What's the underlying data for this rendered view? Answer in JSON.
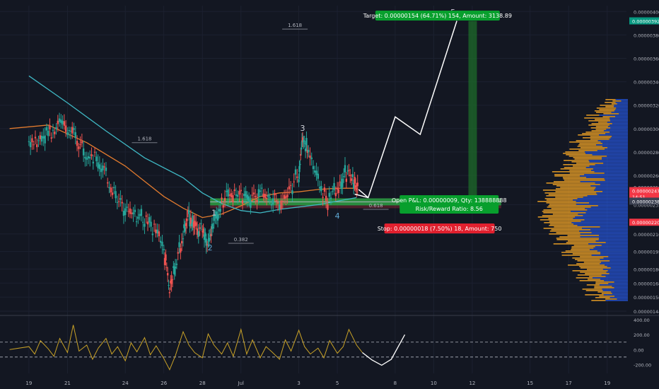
{
  "chart_data": {
    "type": "line",
    "price_axis": {
      "ticks": [
        "0.00000400",
        "0.00000380",
        "0.00000360",
        "0.00000340",
        "0.00000320",
        "0.00000300",
        "0.00000280",
        "0.00000260",
        "0.00000250",
        "0.00000235",
        "0.00000210",
        "0.00000195",
        "0.00000180",
        "0.00000168",
        "0.00000156",
        "0.00000144"
      ],
      "tick_values": [
        400,
        380,
        360,
        340,
        320,
        300,
        280,
        260,
        250,
        235,
        210,
        195,
        180,
        168,
        156,
        144
      ],
      "ylim": [
        144,
        405
      ],
      "scale_note": "x 1e-8"
    },
    "price_badges": [
      {
        "label": "0.00000392",
        "value": 392,
        "color": "#089981"
      },
      {
        "label": "0.00000247",
        "value": 247,
        "color": "#f23645"
      },
      {
        "label": "14:51",
        "value": 242,
        "color": "#f23645"
      },
      {
        "label": "0.00000238",
        "value": 238,
        "color": "#3c4152"
      },
      {
        "label": "0.00000220",
        "value": 220,
        "color": "#f23645"
      }
    ],
    "time_axis": {
      "labels": [
        "19",
        "21",
        "24",
        "26",
        "28",
        "Jul",
        "3",
        "5",
        "8",
        "10",
        "12",
        "15",
        "17",
        "19"
      ],
      "positions": [
        0,
        2,
        5,
        7,
        9,
        11,
        14,
        16,
        19,
        21,
        23,
        26,
        28,
        30
      ],
      "xlim": [
        -1.5,
        31
      ]
    },
    "price_series": [
      [
        0,
        288
      ],
      [
        0.5,
        292
      ],
      [
        1,
        296
      ],
      [
        1.5,
        306
      ],
      [
        2,
        300
      ],
      [
        2.5,
        290
      ],
      [
        3,
        282
      ],
      [
        3.5,
        272
      ],
      [
        4,
        262
      ],
      [
        4.5,
        242
      ],
      [
        5,
        232
      ],
      [
        5.5,
        228
      ],
      [
        6,
        222
      ],
      [
        6.5,
        214
      ],
      [
        7,
        198
      ],
      [
        7.3,
        162
      ],
      [
        7.6,
        185
      ],
      [
        8,
        210
      ],
      [
        8.3,
        226
      ],
      [
        8.6,
        218
      ],
      [
        9,
        212
      ],
      [
        9.3,
        205
      ],
      [
        9.6,
        220
      ],
      [
        10,
        238
      ],
      [
        10.5,
        245
      ],
      [
        11,
        242
      ],
      [
        11.5,
        238
      ],
      [
        12,
        248
      ],
      [
        12.5,
        242
      ],
      [
        13,
        236
      ],
      [
        13.5,
        248
      ],
      [
        14,
        262
      ],
      [
        14.2,
        292
      ],
      [
        14.5,
        282
      ],
      [
        15,
        255
      ],
      [
        15.5,
        238
      ],
      [
        16,
        250
      ],
      [
        16.4,
        262
      ],
      [
        16.8,
        256
      ],
      [
        17.1,
        248
      ]
    ],
    "series": [
      {
        "name": "",
        "color": "#e07a2e",
        "values": [
          [
            -1,
            300
          ],
          [
            1,
            303
          ],
          [
            3,
            288
          ],
          [
            5,
            268
          ],
          [
            7,
            242
          ],
          [
            8,
            232
          ],
          [
            9,
            224
          ],
          [
            10,
            227
          ],
          [
            11,
            234
          ],
          [
            12,
            242
          ],
          [
            13,
            245
          ],
          [
            14,
            246
          ],
          [
            15,
            248
          ],
          [
            16,
            249
          ],
          [
            17,
            249
          ]
        ]
      },
      {
        "name": "",
        "color": "#3fb8c4",
        "values": [
          [
            0,
            345
          ],
          [
            2,
            322
          ],
          [
            4,
            298
          ],
          [
            6,
            275
          ],
          [
            8,
            258
          ],
          [
            9,
            245
          ],
          [
            10,
            236
          ],
          [
            11,
            230
          ],
          [
            12,
            228
          ],
          [
            13,
            231
          ],
          [
            14,
            233
          ],
          [
            15,
            235
          ],
          [
            16,
            238
          ],
          [
            17,
            241
          ]
        ]
      }
    ],
    "projection": [
      [
        17.1,
        248
      ],
      [
        17.6,
        241
      ],
      [
        19,
        310
      ],
      [
        20.3,
        295
      ],
      [
        22.2,
        392
      ]
    ],
    "projection_bottom": [
      [
        16.9,
        244
      ],
      [
        17.6,
        241
      ]
    ],
    "position": {
      "entry": 238,
      "target": 392,
      "stop": 220,
      "x_start": 9.4,
      "x_end": 24.5,
      "target_label": "Target: 0.00000154 (64.71%) 154, Amount: 3138.89",
      "open_label": "Open P&L: 0.00000009, Qty: 138888888",
      "ratio_label": "Risk/Reward Ratio: 8.56",
      "stop_label": "Stop: 0.00000018 (7.50%) 18, Amount: 750"
    },
    "fib_levels": [
      {
        "label": "1.618",
        "x": 6.0,
        "y": 291
      },
      {
        "label": "1.618",
        "x": 13.8,
        "y": 388
      },
      {
        "label": "0.382",
        "x": 11.0,
        "y": 205
      },
      {
        "label": "0.618",
        "x": 18.0,
        "y": 234
      }
    ],
    "wave_labels": [
      {
        "label": "1",
        "x": 9.6,
        "y": 226,
        "color": "#d1d4dc"
      },
      {
        "label": "2",
        "x": 9.4,
        "y": 196,
        "color": "#5fa8d3"
      },
      {
        "label": "3",
        "x": 14.2,
        "y": 298,
        "color": "#d1d4dc"
      },
      {
        "label": "4",
        "x": 16.0,
        "y": 223,
        "color": "#5fa8d3"
      },
      {
        "label": "5",
        "x": 22.0,
        "y": 397,
        "color": "#d1d4dc"
      }
    ],
    "oscillator": {
      "ticks": [
        "400.00",
        "200.00",
        "0.00",
        "-200.00"
      ],
      "tick_values": [
        400,
        200,
        0,
        -200
      ],
      "ylim": [
        -320,
        420
      ],
      "dashed_levels": [
        100,
        -100
      ],
      "values": [
        [
          -1,
          0
        ],
        [
          0,
          40
        ],
        [
          0.3,
          -60
        ],
        [
          0.6,
          120
        ],
        [
          1,
          10
        ],
        [
          1.3,
          -90
        ],
        [
          1.6,
          150
        ],
        [
          2,
          -40
        ],
        [
          2.3,
          330
        ],
        [
          2.6,
          -20
        ],
        [
          3,
          60
        ],
        [
          3.3,
          -130
        ],
        [
          3.6,
          20
        ],
        [
          4,
          150
        ],
        [
          4.3,
          -60
        ],
        [
          4.6,
          40
        ],
        [
          5,
          -150
        ],
        [
          5.3,
          90
        ],
        [
          5.6,
          -30
        ],
        [
          6,
          160
        ],
        [
          6.3,
          -70
        ],
        [
          6.6,
          50
        ],
        [
          7,
          -120
        ],
        [
          7.3,
          -270
        ],
        [
          7.6,
          -80
        ],
        [
          8,
          240
        ],
        [
          8.3,
          60
        ],
        [
          8.6,
          -40
        ],
        [
          9,
          -110
        ],
        [
          9.3,
          210
        ],
        [
          9.6,
          60
        ],
        [
          10,
          -60
        ],
        [
          10.3,
          90
        ],
        [
          10.6,
          -90
        ],
        [
          11,
          270
        ],
        [
          11.3,
          -60
        ],
        [
          11.6,
          130
        ],
        [
          12,
          -110
        ],
        [
          12.3,
          40
        ],
        [
          12.6,
          -30
        ],
        [
          13,
          -130
        ],
        [
          13.3,
          130
        ],
        [
          13.6,
          -20
        ],
        [
          14,
          260
        ],
        [
          14.3,
          40
        ],
        [
          14.6,
          -60
        ],
        [
          15,
          20
        ],
        [
          15.3,
          -110
        ],
        [
          15.6,
          120
        ],
        [
          16,
          -50
        ],
        [
          16.3,
          40
        ],
        [
          16.6,
          270
        ],
        [
          17,
          60
        ],
        [
          17.3,
          -40
        ]
      ],
      "projection": [
        [
          17.3,
          -40
        ],
        [
          17.8,
          -140
        ],
        [
          18.3,
          -210
        ],
        [
          18.8,
          -130
        ],
        [
          19.5,
          200
        ]
      ]
    },
    "volume_profile": {
      "note": "horizontal volume-by-price histogram on the right",
      "up_color": "#2962ff",
      "down_color": "#f9a825"
    },
    "title": "",
    "xlabel": "",
    "ylabel": ""
  }
}
